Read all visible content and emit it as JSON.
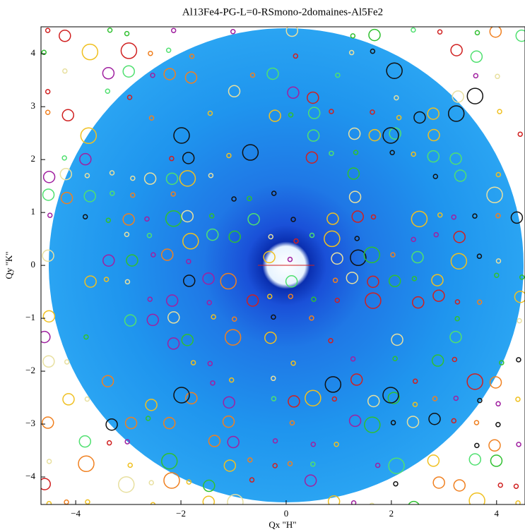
{
  "chart_data": {
    "type": "image",
    "title": "Al13Fe4-PG-L=0-RSmono-2domaines-Al5Fe2",
    "x_label": "Qx \"H\"",
    "y_label": "Qy \"K\"",
    "xlim": [
      -4.66,
      4.54
    ],
    "ylim": [
      -4.52,
      4.51
    ],
    "xticks": [
      {
        "value": -4,
        "label": "−4"
      },
      {
        "value": -2,
        "label": "−2"
      },
      0,
      2,
      4
    ],
    "yticks": [
      {
        "value": -4,
        "label": "−4"
      },
      {
        "value": -3,
        "label": "−3"
      },
      {
        "value": -2,
        "label": "−2"
      },
      {
        "value": -1,
        "label": "−1"
      },
      0,
      1,
      2,
      3,
      4
    ]
  }
}
